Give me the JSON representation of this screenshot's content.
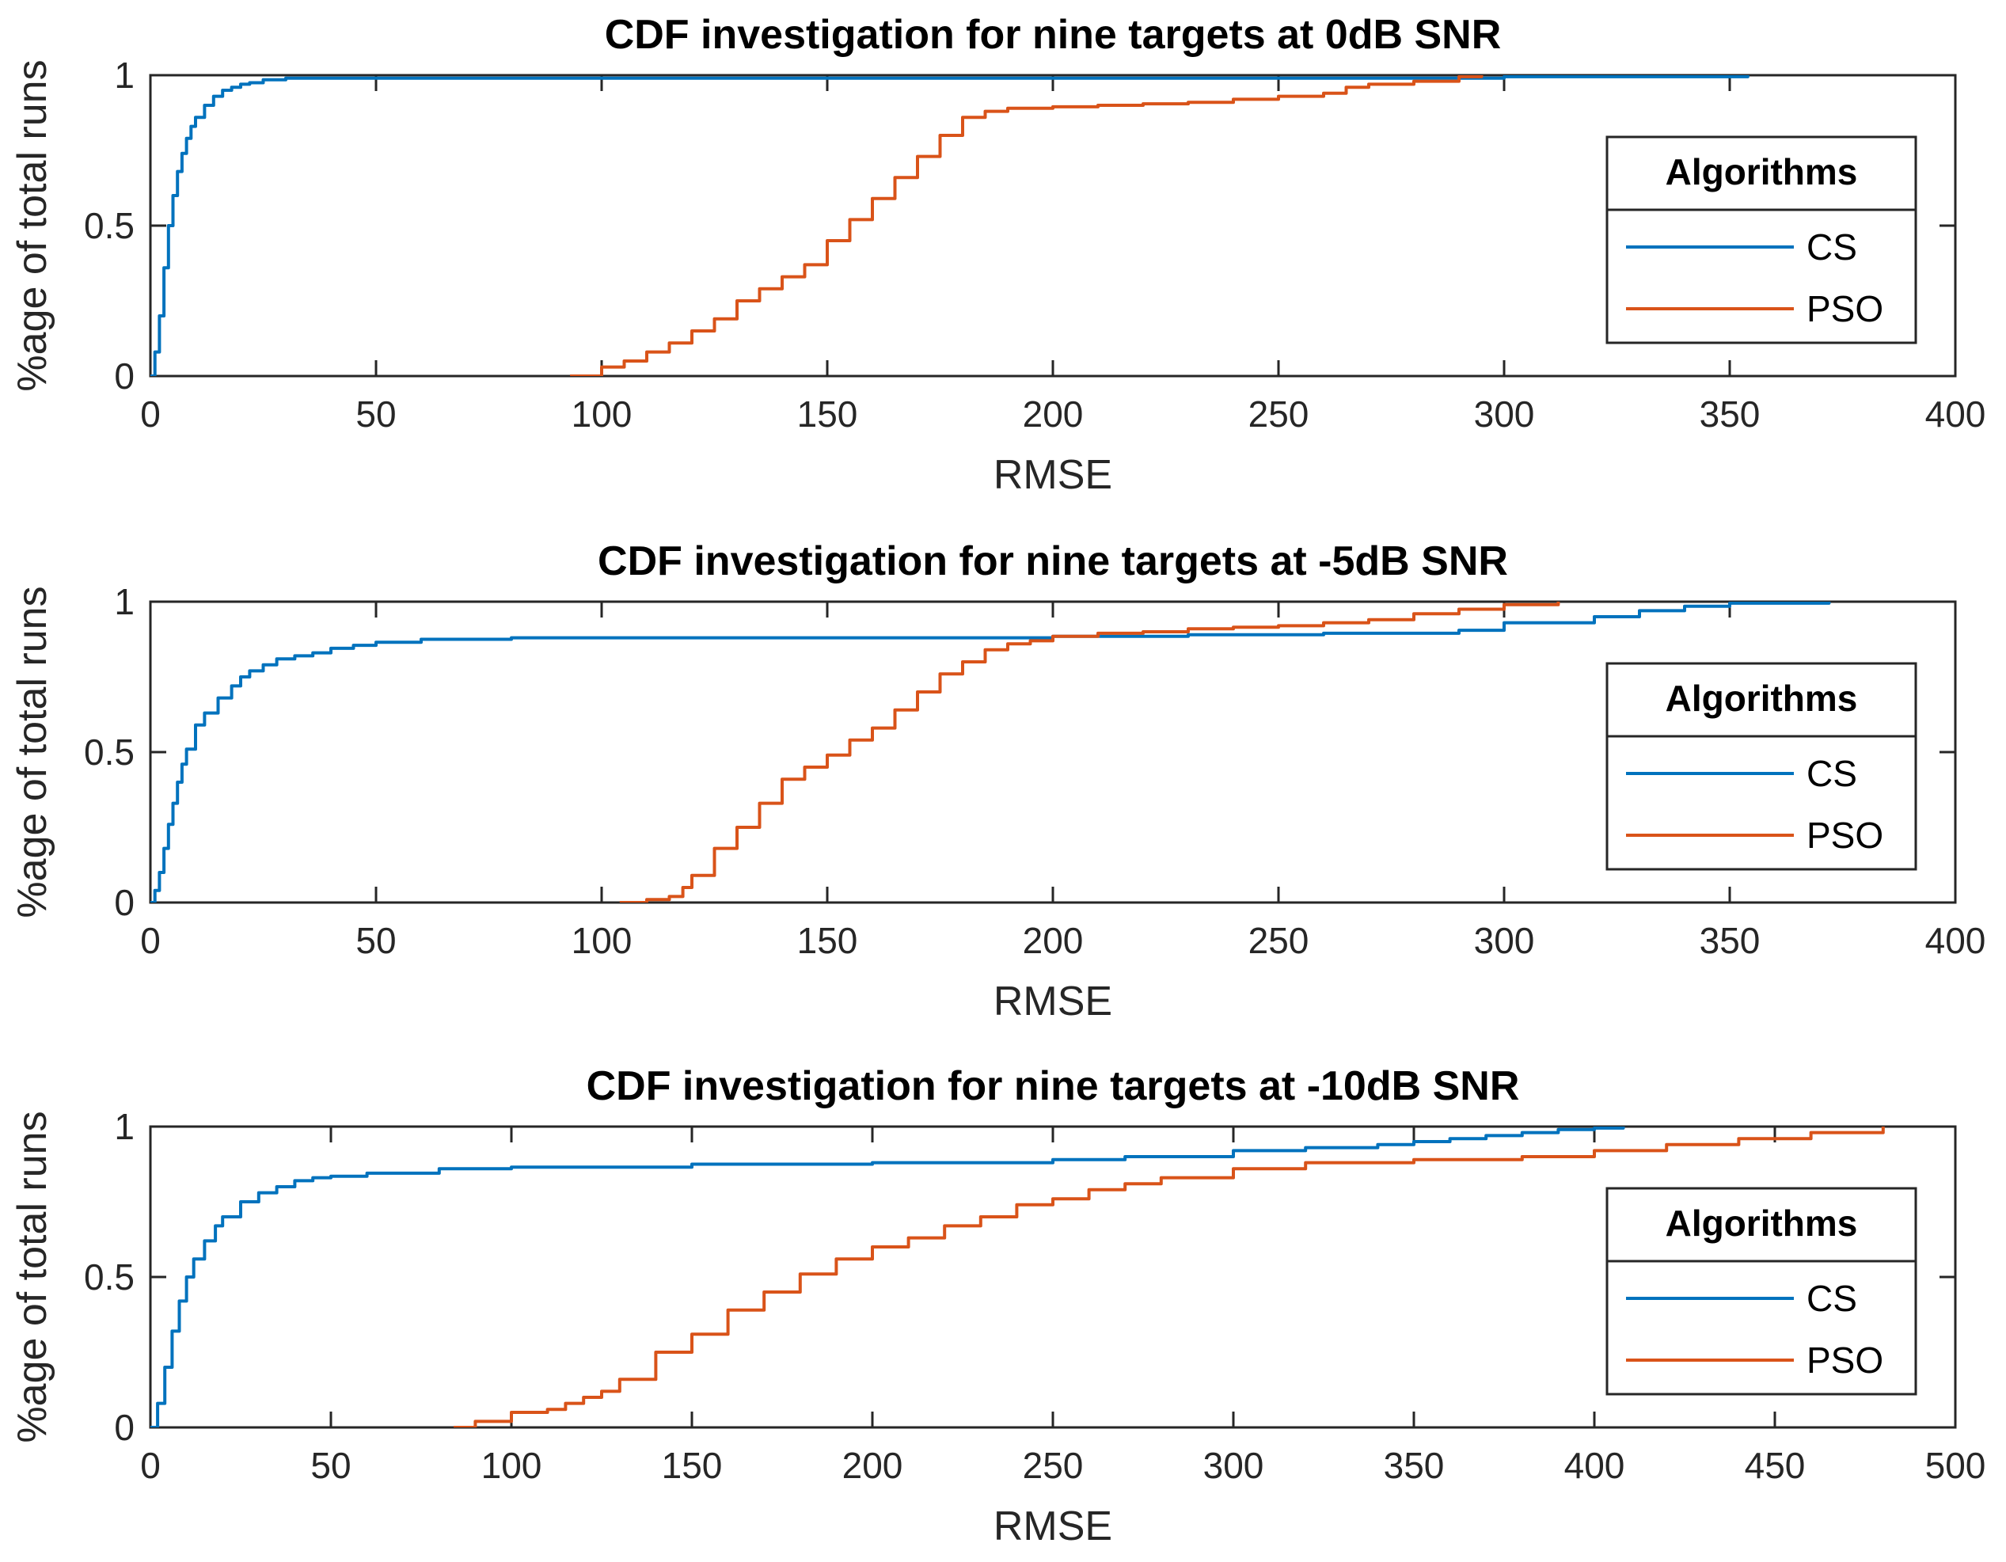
{
  "chart_data": [
    {
      "type": "line",
      "title": "CDF investigation for nine targets at 0dB SNR",
      "xlabel": "RMSE",
      "ylabel": "%age of total runs",
      "xlim": [
        0,
        400
      ],
      "ylim": [
        0,
        1
      ],
      "xticks": [
        "0",
        "50",
        "100",
        "150",
        "200",
        "250",
        "300",
        "350",
        "400"
      ],
      "yticks": [
        "0",
        "0.5",
        "1"
      ],
      "grid": false,
      "legend": {
        "title": "Algorithms",
        "position": "right",
        "entries": [
          "CS",
          "PSO"
        ]
      },
      "colors": {
        "CS": "#0072bd",
        "PSO": "#d95319"
      },
      "series": [
        {
          "name": "CS",
          "x": [
            0,
            1,
            2,
            3,
            4,
            5,
            6,
            7,
            8,
            9,
            10,
            12,
            14,
            16,
            18,
            20,
            22,
            25,
            30,
            40,
            60,
            100,
            200,
            300,
            354
          ],
          "y": [
            0,
            0.08,
            0.2,
            0.36,
            0.5,
            0.6,
            0.68,
            0.74,
            0.79,
            0.83,
            0.86,
            0.9,
            0.93,
            0.95,
            0.96,
            0.97,
            0.975,
            0.985,
            0.99,
            0.99,
            0.99,
            0.99,
            0.99,
            0.995,
            1.0
          ]
        },
        {
          "name": "PSO",
          "x": [
            93,
            100,
            105,
            110,
            115,
            120,
            125,
            130,
            135,
            140,
            145,
            150,
            155,
            160,
            165,
            170,
            175,
            180,
            185,
            190,
            200,
            210,
            220,
            230,
            240,
            250,
            260,
            265,
            270,
            280,
            290,
            295
          ],
          "y": [
            0,
            0.03,
            0.05,
            0.08,
            0.11,
            0.15,
            0.19,
            0.25,
            0.29,
            0.33,
            0.37,
            0.45,
            0.52,
            0.59,
            0.66,
            0.73,
            0.8,
            0.86,
            0.88,
            0.89,
            0.895,
            0.9,
            0.905,
            0.91,
            0.92,
            0.93,
            0.94,
            0.96,
            0.97,
            0.98,
            0.995,
            1.0
          ]
        }
      ]
    },
    {
      "type": "line",
      "title": "CDF investigation for nine targets at -5dB SNR",
      "xlabel": "RMSE",
      "ylabel": "%age of total runs",
      "xlim": [
        0,
        400
      ],
      "ylim": [
        0,
        1
      ],
      "xticks": [
        "0",
        "50",
        "100",
        "150",
        "200",
        "250",
        "300",
        "350",
        "400"
      ],
      "yticks": [
        "0",
        "0.5",
        "1"
      ],
      "grid": false,
      "legend": {
        "title": "Algorithms",
        "position": "right",
        "entries": [
          "CS",
          "PSO"
        ]
      },
      "colors": {
        "CS": "#0072bd",
        "PSO": "#d95319"
      },
      "series": [
        {
          "name": "CS",
          "x": [
            0,
            1,
            2,
            3,
            4,
            5,
            6,
            7,
            8,
            10,
            12,
            15,
            18,
            20,
            22,
            25,
            28,
            32,
            36,
            40,
            45,
            50,
            60,
            80,
            100,
            150,
            180,
            200,
            230,
            260,
            290,
            300,
            320,
            330,
            340,
            350,
            372
          ],
          "y": [
            0,
            0.04,
            0.1,
            0.18,
            0.26,
            0.33,
            0.4,
            0.46,
            0.51,
            0.59,
            0.63,
            0.68,
            0.72,
            0.75,
            0.77,
            0.79,
            0.81,
            0.82,
            0.83,
            0.845,
            0.855,
            0.865,
            0.875,
            0.88,
            0.88,
            0.88,
            0.88,
            0.885,
            0.89,
            0.895,
            0.905,
            0.93,
            0.95,
            0.97,
            0.985,
            0.995,
            1.0
          ]
        },
        {
          "name": "PSO",
          "x": [
            104,
            110,
            115,
            118,
            120,
            125,
            130,
            135,
            140,
            145,
            150,
            155,
            160,
            165,
            170,
            175,
            180,
            185,
            190,
            195,
            200,
            210,
            220,
            230,
            240,
            250,
            260,
            270,
            280,
            290,
            300,
            312
          ],
          "y": [
            0,
            0.01,
            0.02,
            0.05,
            0.09,
            0.18,
            0.25,
            0.33,
            0.41,
            0.45,
            0.49,
            0.54,
            0.58,
            0.64,
            0.7,
            0.76,
            0.8,
            0.84,
            0.86,
            0.87,
            0.885,
            0.895,
            0.9,
            0.91,
            0.915,
            0.92,
            0.93,
            0.94,
            0.96,
            0.975,
            0.99,
            1.0
          ]
        }
      ]
    },
    {
      "type": "line",
      "title": "CDF investigation for nine targets at -10dB SNR",
      "xlabel": "RMSE",
      "ylabel": "%age of total runs",
      "xlim": [
        0,
        500
      ],
      "ylim": [
        0,
        1
      ],
      "xticks": [
        "0",
        "50",
        "100",
        "150",
        "200",
        "250",
        "300",
        "350",
        "400",
        "450",
        "500"
      ],
      "yticks": [
        "0",
        "0.5",
        "1"
      ],
      "grid": false,
      "legend": {
        "title": "Algorithms",
        "position": "right",
        "entries": [
          "CS",
          "PSO"
        ]
      },
      "colors": {
        "CS": "#0072bd",
        "PSO": "#d95319"
      },
      "series": [
        {
          "name": "CS",
          "x": [
            0,
            2,
            4,
            6,
            8,
            10,
            12,
            15,
            18,
            20,
            25,
            30,
            35,
            40,
            45,
            50,
            60,
            80,
            100,
            150,
            200,
            250,
            270,
            300,
            320,
            340,
            350,
            360,
            370,
            380,
            390,
            400,
            408
          ],
          "y": [
            0,
            0.08,
            0.2,
            0.32,
            0.42,
            0.5,
            0.56,
            0.62,
            0.67,
            0.7,
            0.75,
            0.78,
            0.8,
            0.82,
            0.83,
            0.835,
            0.845,
            0.86,
            0.865,
            0.875,
            0.88,
            0.89,
            0.9,
            0.92,
            0.93,
            0.94,
            0.95,
            0.96,
            0.97,
            0.98,
            0.99,
            0.995,
            1.0
          ]
        },
        {
          "name": "PSO",
          "x": [
            84,
            90,
            100,
            110,
            115,
            120,
            125,
            130,
            140,
            150,
            160,
            170,
            180,
            190,
            200,
            210,
            220,
            230,
            240,
            250,
            260,
            270,
            280,
            300,
            320,
            350,
            380,
            400,
            420,
            440,
            460,
            480
          ],
          "y": [
            0,
            0.02,
            0.05,
            0.06,
            0.08,
            0.1,
            0.12,
            0.16,
            0.25,
            0.31,
            0.39,
            0.45,
            0.51,
            0.56,
            0.6,
            0.63,
            0.67,
            0.7,
            0.74,
            0.76,
            0.79,
            0.81,
            0.83,
            0.86,
            0.88,
            0.89,
            0.9,
            0.92,
            0.94,
            0.96,
            0.98,
            1.0
          ]
        }
      ]
    }
  ]
}
